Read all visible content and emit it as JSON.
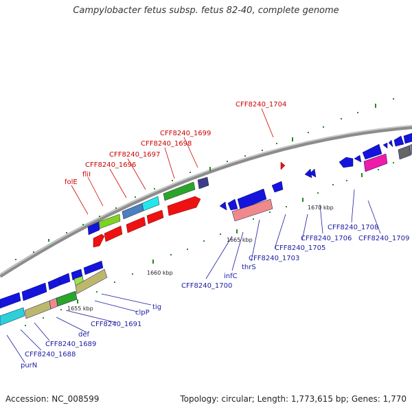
{
  "title": "Campylobacter fetus subsp. fetus 82-40, complete genome",
  "footer": {
    "accession": "Accession: NC_008599",
    "summary": "Topology: circular; Length: 1,773,615 bp; Genes: 1,770"
  },
  "tick_labels": {
    "t1655": "1655 kbp",
    "t1660": "1660 kbp",
    "t1665": "1665 kbp",
    "t1670": "1670 kbp"
  },
  "red_labels": {
    "cff1704": "CFF8240_1704",
    "cff1699": "CFF8240_1699",
    "cff1698": "CFF8240_1698",
    "cff1697": "CFF8240_1697",
    "cff1696": "CFF8240_1696",
    "flil": "fliI",
    "fole": "folE"
  },
  "blue_labels": {
    "cff1708": "CFF8240_1708",
    "cff1709": "CFF8240_1709",
    "cff1706": "CFF8240_1706",
    "cff1705": "CFF8240_1705",
    "cff1703": "CFF8240_1703",
    "thrs": "thrS",
    "infc": "infC",
    "cff1700": "CFF8240_1700",
    "tig": "tig",
    "clpp": "clpP",
    "cff1691": "CFF8240_1691",
    "def": "def",
    "cff1689": "CFF8240_1689",
    "cff1688": "CFF8240_1688",
    "purn": "purN"
  },
  "colors": {
    "backbone": "#8c8c8c",
    "forward_gene": "#ee1111",
    "reverse_gene": "#1414dd",
    "rrna_green": "#2aa52a",
    "pink": "#e87a7a",
    "cyan": "#33dddd",
    "khaki": "#bdb76b"
  }
}
